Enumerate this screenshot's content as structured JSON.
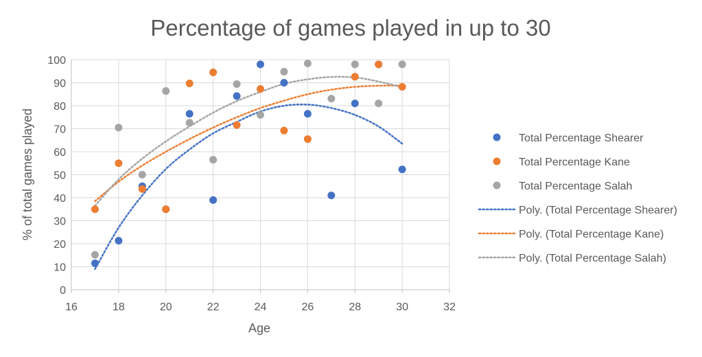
{
  "chart_data": {
    "type": "scatter",
    "title": "Percentage of games played in up to 30",
    "xlabel": "Age",
    "ylabel": "% of total games played",
    "xlim": [
      16,
      32
    ],
    "ylim": [
      0,
      100
    ],
    "xticks": [
      16,
      18,
      20,
      22,
      24,
      26,
      28,
      30,
      32
    ],
    "yticks": [
      0,
      10,
      20,
      30,
      40,
      50,
      60,
      70,
      80,
      90,
      100
    ],
    "grid": true,
    "legend_position": "right",
    "series": [
      {
        "name": "Total Percentage Shearer",
        "color": "#4472C4",
        "points": [
          [
            17,
            11.5
          ],
          [
            18,
            21.3
          ],
          [
            19,
            45
          ],
          [
            20,
            35
          ],
          [
            21,
            76.5
          ],
          [
            22,
            39
          ],
          [
            23,
            84.2
          ],
          [
            24,
            98
          ],
          [
            25,
            90
          ],
          [
            26,
            76.5
          ],
          [
            27,
            41
          ],
          [
            28,
            81
          ],
          [
            29,
            98
          ],
          [
            30,
            52.3
          ]
        ]
      },
      {
        "name": "Total Percentage Kane",
        "color": "#ED7D31",
        "points": [
          [
            17,
            35
          ],
          [
            18,
            55
          ],
          [
            19,
            43.8
          ],
          [
            20,
            35
          ],
          [
            21,
            89.7
          ],
          [
            22,
            94.5
          ],
          [
            23,
            71.6
          ],
          [
            24,
            87.3
          ],
          [
            25,
            69.2
          ],
          [
            26,
            65.5
          ],
          [
            28,
            92.6
          ],
          [
            29,
            98
          ],
          [
            30,
            88.2
          ]
        ]
      },
      {
        "name": "Total Percentage Salah",
        "color": "#A5A5A5",
        "points": [
          [
            17,
            15.2
          ],
          [
            18,
            70.5
          ],
          [
            19,
            50
          ],
          [
            20,
            86.4
          ],
          [
            21,
            72.6
          ],
          [
            22,
            56.5
          ],
          [
            23,
            89.4
          ],
          [
            24,
            76
          ],
          [
            25,
            94.8
          ],
          [
            26,
            98.4
          ],
          [
            27,
            83.1
          ],
          [
            28,
            98
          ],
          [
            29,
            81
          ],
          [
            30,
            98
          ]
        ]
      }
    ],
    "trendlines": [
      {
        "name": "Poly. (Total Percentage Shearer)",
        "color": "#4472C4",
        "points": [
          [
            17,
            9
          ],
          [
            18,
            27
          ],
          [
            19,
            41
          ],
          [
            20,
            52.5
          ],
          [
            21,
            61
          ],
          [
            22,
            68
          ],
          [
            23,
            73
          ],
          [
            24,
            77.5
          ],
          [
            25,
            80
          ],
          [
            26,
            80.5
          ],
          [
            27,
            79
          ],
          [
            28,
            76
          ],
          [
            29,
            71
          ],
          [
            30,
            63.5
          ]
        ]
      },
      {
        "name": "Poly. (Total Percentage Kane)",
        "color": "#ED7D31",
        "points": [
          [
            17,
            38.5
          ],
          [
            18,
            47
          ],
          [
            19,
            54
          ],
          [
            20,
            60
          ],
          [
            21,
            65.5
          ],
          [
            22,
            70.5
          ],
          [
            23,
            75
          ],
          [
            24,
            79
          ],
          [
            25,
            82.2
          ],
          [
            26,
            85
          ],
          [
            27,
            87
          ],
          [
            28,
            88.2
          ],
          [
            29,
            88.7
          ],
          [
            30,
            88.8
          ]
        ]
      },
      {
        "name": "Poly. (Total Percentage Salah)",
        "color": "#A5A5A5",
        "points": [
          [
            17,
            36.5
          ],
          [
            18,
            48
          ],
          [
            19,
            57
          ],
          [
            20,
            64.5
          ],
          [
            21,
            71
          ],
          [
            22,
            77
          ],
          [
            23,
            82
          ],
          [
            24,
            86
          ],
          [
            25,
            89.5
          ],
          [
            26,
            91.5
          ],
          [
            27,
            92.5
          ],
          [
            28,
            92.3
          ],
          [
            29,
            90.5
          ],
          [
            30,
            88
          ]
        ]
      }
    ]
  }
}
